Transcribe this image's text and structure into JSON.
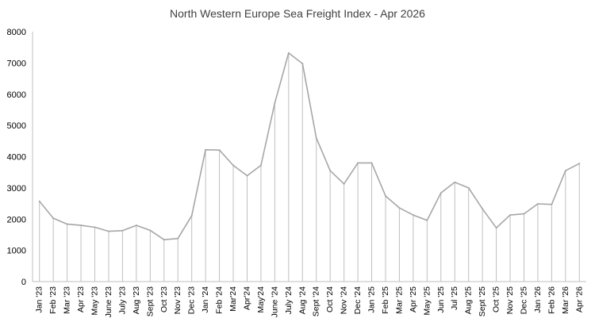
{
  "chart_data": {
    "type": "line",
    "title": "North Western Europe Sea Freight Index - Apr 2026",
    "xlabel": "",
    "ylabel": "",
    "ylim": [
      0,
      8000
    ],
    "yticks": [
      0,
      1000,
      2000,
      3000,
      4000,
      5000,
      6000,
      7000,
      8000
    ],
    "grid": "vertical drop lines to each point",
    "legend": "none",
    "colors": {
      "line": "#a6a6a6",
      "dropline": "#bfbfbf",
      "axis": "#bfbfbf"
    },
    "categories": [
      "Jan '23",
      "Feb '23",
      "Mar '23",
      "Apr '23",
      "May '23",
      "June '23",
      "July '23",
      "Aug '23",
      "Sept '23",
      "Oct '23",
      "Nov '23",
      "Dec '23",
      "Jan '24",
      "Feb '24",
      "Mar'24",
      "Apr'24",
      "May'24",
      "June '24",
      "July '24",
      "Aug '24",
      "Sept '24",
      "Oct '24",
      "Nov '24",
      "Dec '24",
      "Jan '25",
      "Feb '25",
      "Mar '25",
      "Apr '25",
      "May '25",
      "Jun '25",
      "Jul '25",
      "Aug '25",
      "Sept '25",
      "Oct '25",
      "Nov '25",
      "Dec '25",
      "Jan '26",
      "Feb '26",
      "Mar '26",
      "Apr '26"
    ],
    "series": [
      {
        "values": [
          2570,
          2030,
          1840,
          1800,
          1740,
          1610,
          1630,
          1800,
          1640,
          1340,
          1380,
          2110,
          4220,
          4210,
          3720,
          3390,
          3720,
          5720,
          7320,
          6980,
          4600,
          3550,
          3130,
          3800,
          3800,
          2740,
          2360,
          2130,
          1960,
          2840,
          3180,
          3000,
          2330,
          1720,
          2130,
          2170,
          2490,
          2470,
          3550,
          3780
        ]
      }
    ]
  }
}
